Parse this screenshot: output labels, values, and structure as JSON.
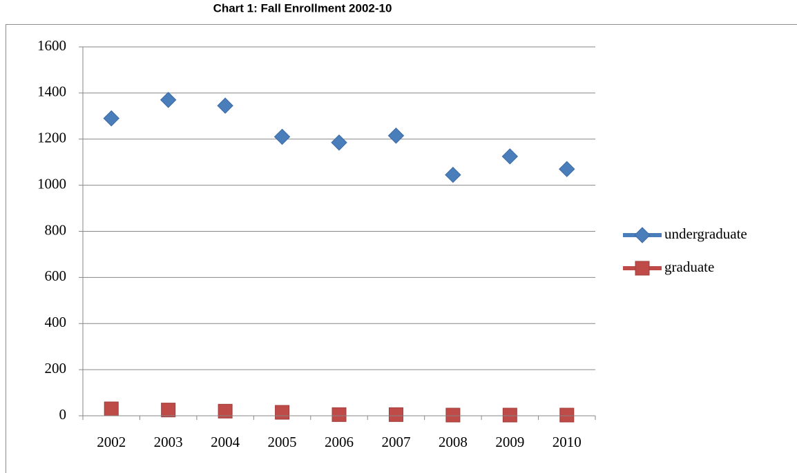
{
  "chart_data": {
    "type": "line",
    "title": "Chart 1: Fall Enrollment 2002-10",
    "categories": [
      "2002",
      "2003",
      "2004",
      "2005",
      "2006",
      "2007",
      "2008",
      "2009",
      "2010"
    ],
    "series": [
      {
        "name": "undergraduate",
        "color": "#4a7ebb",
        "marker": "diamond",
        "values": [
          1290,
          1370,
          1345,
          1210,
          1185,
          1215,
          1045,
          1125,
          1070
        ]
      },
      {
        "name": "graduate",
        "color": "#be4b48",
        "marker": "square",
        "values": [
          30,
          25,
          20,
          15,
          5,
          5,
          3,
          3,
          3
        ]
      }
    ],
    "ylim": [
      0,
      1600
    ],
    "yticks": [
      0,
      200,
      400,
      600,
      800,
      1000,
      1200,
      1400,
      1600
    ],
    "grid": true,
    "legend": "right"
  }
}
